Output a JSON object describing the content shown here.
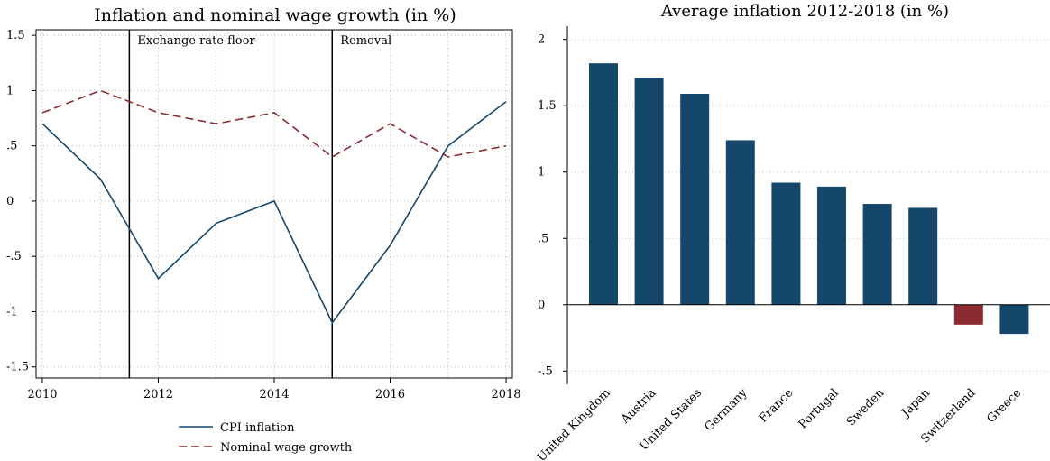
{
  "chart_data": [
    {
      "type": "line",
      "title": "Inflation and nominal wage growth (in %)",
      "xlabel": "",
      "ylabel": "",
      "x": [
        2010,
        2011,
        2012,
        2013,
        2014,
        2015,
        2016,
        2017,
        2018
      ],
      "xticks": [
        "2010",
        "2012",
        "2014",
        "2016",
        "2018"
      ],
      "yticks": [
        "1.5",
        "1",
        ".5",
        "0",
        "-.5",
        "-1",
        "-1.5"
      ],
      "ytick_values": [
        1.5,
        1,
        0.5,
        0,
        -0.5,
        -1,
        -1.5
      ],
      "xlim": [
        2010,
        2018
      ],
      "ylim": [
        -1.6,
        1.55
      ],
      "grid": true,
      "legend_position": "bottom",
      "series": [
        {
          "name": "CPI inflation",
          "values": [
            0.7,
            0.2,
            -0.7,
            -0.2,
            0.0,
            -1.1,
            -0.4,
            0.5,
            0.9
          ],
          "color": "#15476d",
          "style": "solid"
        },
        {
          "name": "Nominal wage growth",
          "values": [
            0.8,
            1.0,
            0.8,
            0.7,
            0.8,
            0.4,
            0.7,
            0.4,
            0.5
          ],
          "color": "#8b2a30",
          "style": "dashed"
        }
      ],
      "annotations": [
        {
          "x": 2011.5,
          "label": "Exchange rate floor"
        },
        {
          "x": 2015.0,
          "label": "Removal"
        }
      ]
    },
    {
      "type": "bar",
      "title": "Average inflation 2012-2018 (in %)",
      "xlabel": "",
      "ylabel": "",
      "categories": [
        "United Kingdom",
        "Austria",
        "United States",
        "Germany",
        "France",
        "Portugal",
        "Sweden",
        "Japan",
        "Switzerland",
        "Greece"
      ],
      "values": [
        1.82,
        1.71,
        1.59,
        1.24,
        0.92,
        0.89,
        0.76,
        0.73,
        -0.15,
        -0.22
      ],
      "bar_colors": [
        "#15476d",
        "#15476d",
        "#15476d",
        "#15476d",
        "#15476d",
        "#15476d",
        "#15476d",
        "#15476d",
        "#8b2a30",
        "#15476d"
      ],
      "yticks": [
        "2",
        "1.5",
        "1",
        ".5",
        "0",
        "-.5"
      ],
      "ytick_values": [
        2,
        1.5,
        1,
        0.5,
        0,
        -0.5
      ],
      "ylim": [
        -0.6,
        2.1
      ],
      "grid": true
    }
  ]
}
